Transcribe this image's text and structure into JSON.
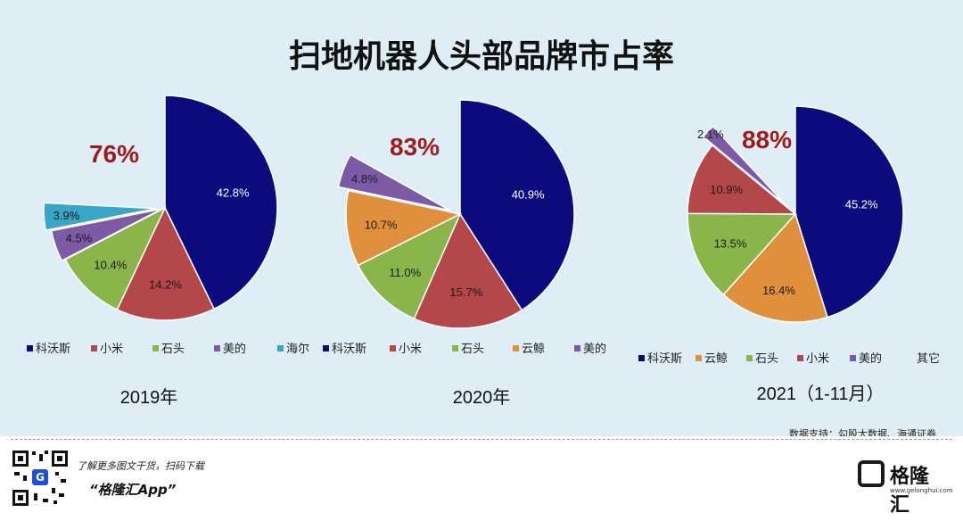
{
  "title": "扫地机器人头部品牌市占率",
  "source": "数据支持：勾股大数据、海通证券",
  "footer": {
    "line1": "了解更多图文干货，扫码下载",
    "app": "“格隆汇App”",
    "qr_badge": "G",
    "brand_name": "格隆汇",
    "brand_url": "www.gelonghui.com"
  },
  "colors": {
    "科沃斯": "#0b0b7e",
    "小米": "#b3474a",
    "石头": "#8ab54b",
    "美的": "#7c5aa6",
    "海尔": "#38a6c4",
    "云鲸": "#e0903d",
    "其它": "#8ec4ef",
    "highlight": "#a01c1c",
    "panel": "#dfeef6"
  },
  "chart_data": [
    {
      "type": "pie",
      "title": "2019年",
      "highlight": "76%",
      "series": [
        {
          "name": "科沃斯",
          "value": 42.8,
          "label": "42.8%"
        },
        {
          "name": "小米",
          "value": 14.2,
          "label": "14.2%"
        },
        {
          "name": "石头",
          "value": 10.4,
          "label": "10.4%"
        },
        {
          "name": "美的",
          "value": 4.5,
          "label": "4.5%"
        },
        {
          "name": "海尔",
          "value": 3.9,
          "label": "3.9%"
        }
      ],
      "legend": [
        "科沃斯",
        "小米",
        "石头",
        "美的",
        "海尔"
      ]
    },
    {
      "type": "pie",
      "title": "2020年",
      "highlight": "83%",
      "series": [
        {
          "name": "科沃斯",
          "value": 40.9,
          "label": "40.9%"
        },
        {
          "name": "小米",
          "value": 15.7,
          "label": "15.7%"
        },
        {
          "name": "石头",
          "value": 11.0,
          "label": "11.0%"
        },
        {
          "name": "云鲸",
          "value": 10.7,
          "label": "10.7%"
        },
        {
          "name": "美的",
          "value": 4.8,
          "label": "4.8%"
        }
      ],
      "legend": [
        "科沃斯",
        "小米",
        "石头",
        "云鲸",
        "美的"
      ]
    },
    {
      "type": "pie",
      "title": "2021（1-11月）",
      "highlight": "88%",
      "series": [
        {
          "name": "科沃斯",
          "value": 45.2,
          "label": "45.2%"
        },
        {
          "name": "云鲸",
          "value": 16.4,
          "label": "16.4%"
        },
        {
          "name": "石头",
          "value": 13.5,
          "label": "13.5%"
        },
        {
          "name": "小米",
          "value": 10.9,
          "label": "10.9%"
        },
        {
          "name": "美的",
          "value": 2.1,
          "label": "2.1%"
        }
      ],
      "legend": [
        "科沃斯",
        "云鲸",
        "石头",
        "小米",
        "美的",
        "其它"
      ]
    }
  ]
}
